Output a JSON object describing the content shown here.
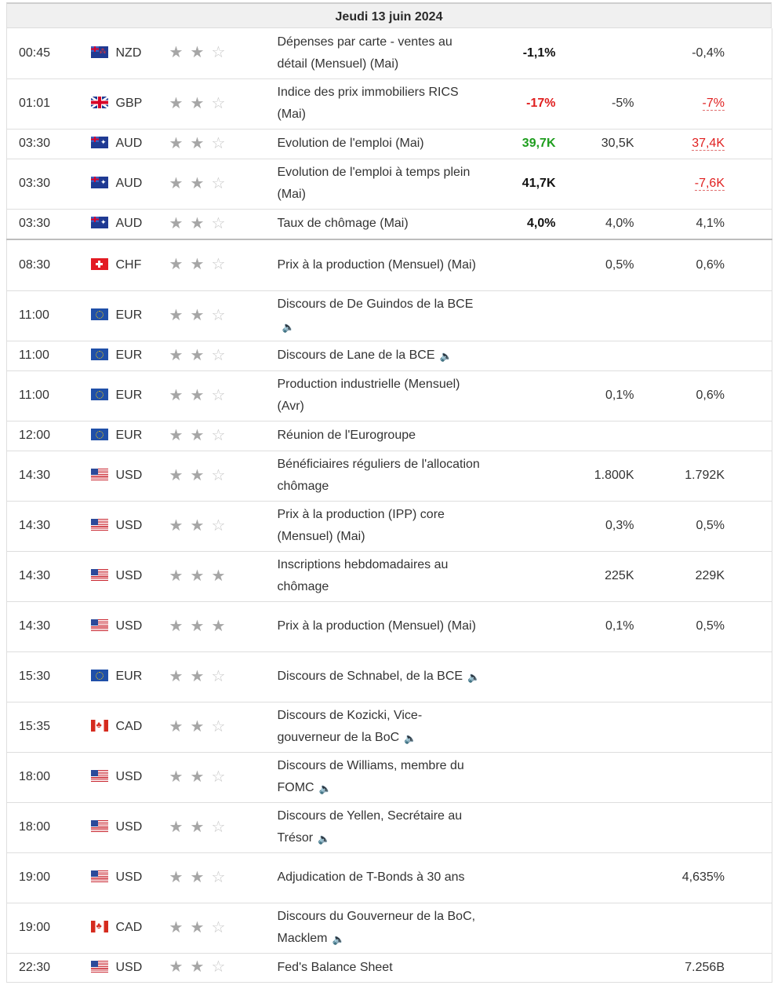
{
  "date_header": "Jeudi 13 juin 2024",
  "rows": [
    {
      "time": "00:45",
      "flag": "nz",
      "currency": "NZD",
      "stars": 2,
      "event": "Dépenses par carte - ventes au détail (Mensuel) (Mai)",
      "speech": false,
      "actual": "-1,1%",
      "actual_color": "default",
      "forecast": "",
      "previous": "-0,4%",
      "previous_revised": false
    },
    {
      "time": "01:01",
      "flag": "gb",
      "currency": "GBP",
      "stars": 2,
      "event": "Indice des prix immobiliers RICS (Mai)",
      "speech": false,
      "actual": "-17%",
      "actual_color": "red",
      "forecast": "-5%",
      "previous": "-7%",
      "previous_revised": true
    },
    {
      "time": "03:30",
      "flag": "au",
      "currency": "AUD",
      "stars": 2,
      "event": "Evolution de l'emploi (Mai)",
      "speech": false,
      "actual": "39,7K",
      "actual_color": "green",
      "forecast": "30,5K",
      "previous": "37,4K",
      "previous_revised": true
    },
    {
      "time": "03:30",
      "flag": "au",
      "currency": "AUD",
      "stars": 2,
      "event": "Evolution de l'emploi à temps plein (Mai)",
      "speech": false,
      "actual": "41,7K",
      "actual_color": "default",
      "forecast": "",
      "previous": "-7,6K",
      "previous_revised": true
    },
    {
      "time": "03:30",
      "flag": "au",
      "currency": "AUD",
      "stars": 2,
      "event": "Taux de chômage (Mai)",
      "speech": false,
      "actual": "4,0%",
      "actual_color": "default",
      "forecast": "4,0%",
      "previous": "4,1%",
      "previous_revised": false,
      "separator_after": true
    },
    {
      "time": "08:30",
      "flag": "ch",
      "currency": "CHF",
      "stars": 2,
      "event": "Prix à la production (Mensuel) (Mai)",
      "speech": false,
      "actual": "",
      "actual_color": "default",
      "forecast": "0,5%",
      "previous": "0,6%",
      "previous_revised": false
    },
    {
      "time": "11:00",
      "flag": "eu",
      "currency": "EUR",
      "stars": 2,
      "event": "Discours de De Guindos de la BCE",
      "speech": true,
      "actual": "",
      "actual_color": "default",
      "forecast": "",
      "previous": "",
      "previous_revised": false
    },
    {
      "time": "11:00",
      "flag": "eu",
      "currency": "EUR",
      "stars": 2,
      "event": "Discours de Lane de la BCE",
      "speech": true,
      "actual": "",
      "actual_color": "default",
      "forecast": "",
      "previous": "",
      "previous_revised": false
    },
    {
      "time": "11:00",
      "flag": "eu",
      "currency": "EUR",
      "stars": 2,
      "event": "Production industrielle (Mensuel) (Avr)",
      "speech": false,
      "actual": "",
      "actual_color": "default",
      "forecast": "0,1%",
      "previous": "0,6%",
      "previous_revised": false
    },
    {
      "time": "12:00",
      "flag": "eu",
      "currency": "EUR",
      "stars": 2,
      "event": "Réunion de l'Eurogroupe",
      "speech": false,
      "actual": "",
      "actual_color": "default",
      "forecast": "",
      "previous": "",
      "previous_revised": false
    },
    {
      "time": "14:30",
      "flag": "us",
      "currency": "USD",
      "stars": 2,
      "event": "Bénéficiaires réguliers de l'allocation chômage",
      "speech": false,
      "actual": "",
      "actual_color": "default",
      "forecast": "1.800K",
      "previous": "1.792K",
      "previous_revised": false
    },
    {
      "time": "14:30",
      "flag": "us",
      "currency": "USD",
      "stars": 2,
      "event": "Prix à la production (IPP) core (Mensuel) (Mai)",
      "speech": false,
      "actual": "",
      "actual_color": "default",
      "forecast": "0,3%",
      "previous": "0,5%",
      "previous_revised": false
    },
    {
      "time": "14:30",
      "flag": "us",
      "currency": "USD",
      "stars": 3,
      "event": "Inscriptions hebdomadaires au chômage",
      "speech": false,
      "actual": "",
      "actual_color": "default",
      "forecast": "225K",
      "previous": "229K",
      "previous_revised": false
    },
    {
      "time": "14:30",
      "flag": "us",
      "currency": "USD",
      "stars": 3,
      "event": "Prix à la production (Mensuel) (Mai)",
      "speech": false,
      "actual": "",
      "actual_color": "default",
      "forecast": "0,1%",
      "previous": "0,5%",
      "previous_revised": false
    },
    {
      "time": "15:30",
      "flag": "eu",
      "currency": "EUR",
      "stars": 2,
      "event": "Discours de Schnabel, de la BCE",
      "speech": true,
      "actual": "",
      "actual_color": "default",
      "forecast": "",
      "previous": "",
      "previous_revised": false
    },
    {
      "time": "15:35",
      "flag": "ca",
      "currency": "CAD",
      "stars": 2,
      "event": "Discours de Kozicki, Vice-gouverneur de la BoC",
      "speech": true,
      "actual": "",
      "actual_color": "default",
      "forecast": "",
      "previous": "",
      "previous_revised": false
    },
    {
      "time": "18:00",
      "flag": "us",
      "currency": "USD",
      "stars": 2,
      "event": "Discours de Williams, membre du FOMC",
      "speech": true,
      "actual": "",
      "actual_color": "default",
      "forecast": "",
      "previous": "",
      "previous_revised": false
    },
    {
      "time": "18:00",
      "flag": "us",
      "currency": "USD",
      "stars": 2,
      "event": "Discours de Yellen, Secrétaire au Trésor",
      "speech": true,
      "actual": "",
      "actual_color": "default",
      "forecast": "",
      "previous": "",
      "previous_revised": false
    },
    {
      "time": "19:00",
      "flag": "us",
      "currency": "USD",
      "stars": 2,
      "event": "Adjudication de T-Bonds à 30 ans",
      "speech": false,
      "actual": "",
      "actual_color": "default",
      "forecast": "",
      "previous": "4,635%",
      "previous_revised": false
    },
    {
      "time": "19:00",
      "flag": "ca",
      "currency": "CAD",
      "stars": 2,
      "event": "Discours du Gouverneur de la BoC, Macklem",
      "speech": true,
      "actual": "",
      "actual_color": "default",
      "forecast": "",
      "previous": "",
      "previous_revised": false
    },
    {
      "time": "22:30",
      "flag": "us",
      "currency": "USD",
      "stars": 2,
      "event": "Fed's Balance Sheet",
      "speech": false,
      "actual": "",
      "actual_color": "default",
      "forecast": "",
      "previous": "7.256B",
      "previous_revised": false
    }
  ]
}
